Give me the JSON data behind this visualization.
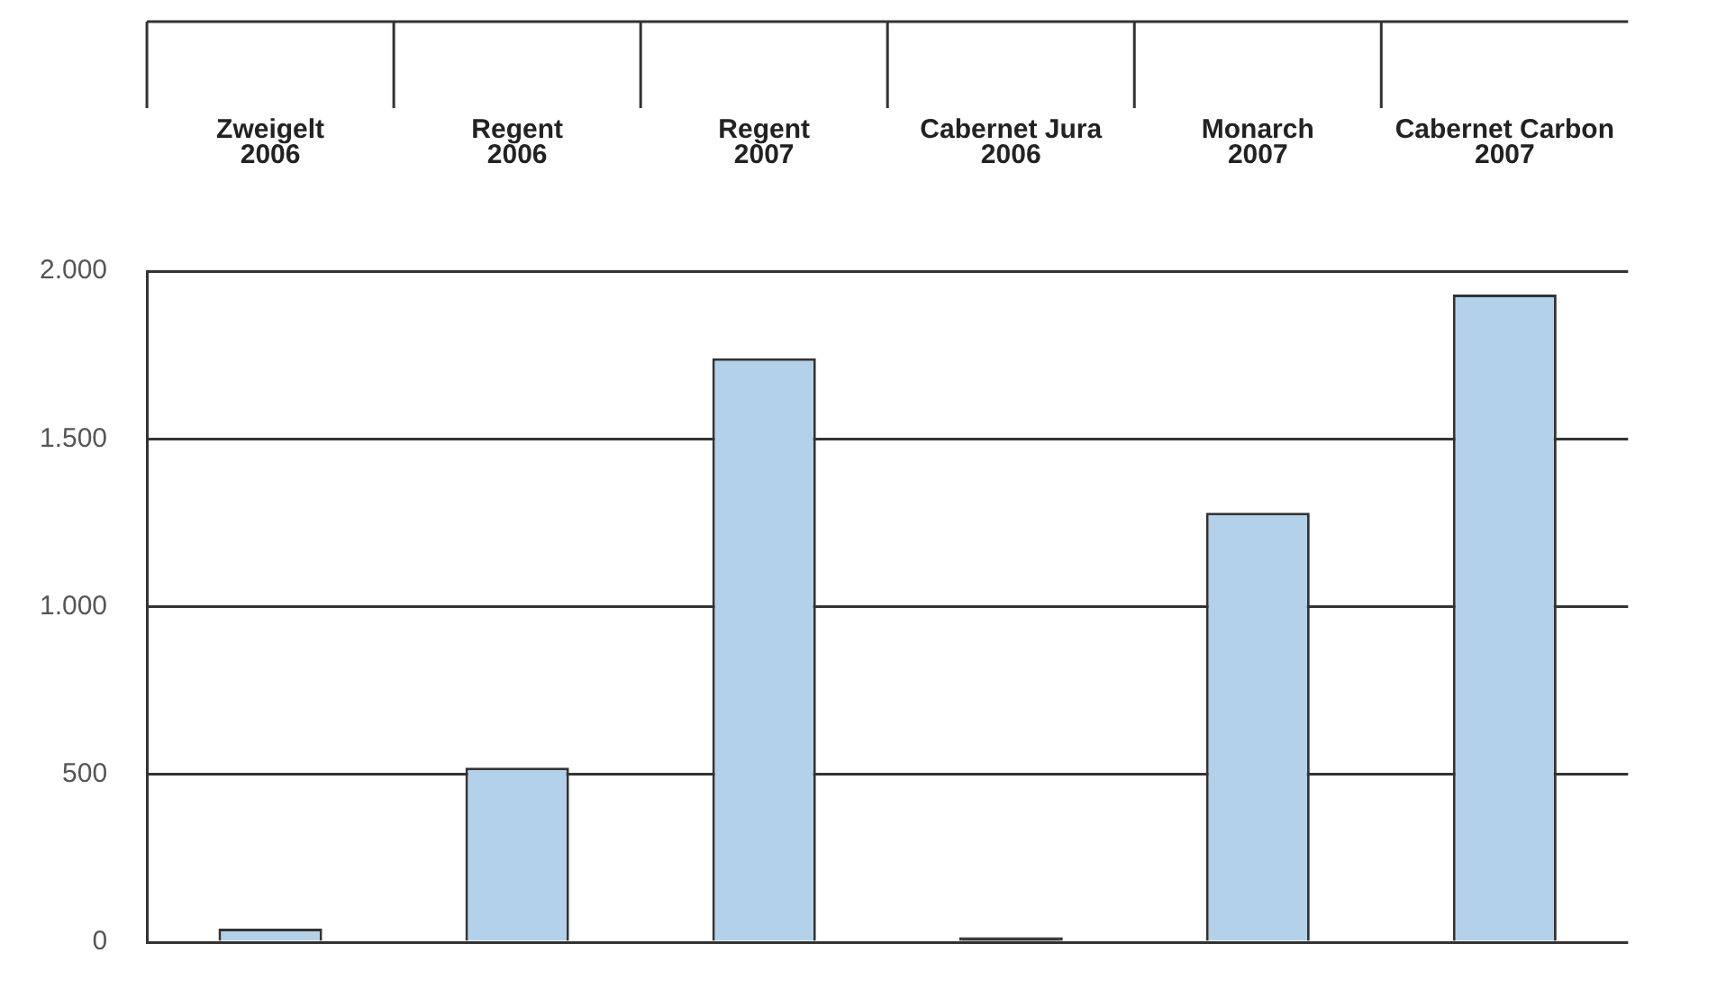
{
  "chart_data": {
    "type": "bar",
    "categories": [
      "Zweigelt\n2006",
      "Regent\n2006",
      "Regent\n2007",
      "Cabernet Jura\n2006",
      "Monarch\n2007",
      "Cabernet Carbon\n2007"
    ],
    "values": [
      40,
      520,
      1740,
      15,
      1280,
      1930
    ],
    "colors": [
      "#b3d1e8",
      "#b3d1e8",
      "#b3d1e8",
      "#1a1a1a",
      "#b3d1e8",
      "#b3d1e8"
    ],
    "ylim": [
      0,
      2000
    ],
    "yticks": [
      {
        "value": 0,
        "label": "0"
      },
      {
        "value": 500,
        "label": "500"
      },
      {
        "value": 1000,
        "label": "1.000"
      },
      {
        "value": 1500,
        "label": "1.500"
      },
      {
        "value": 2000,
        "label": "2.000"
      }
    ],
    "grid": "y",
    "legend": false
  }
}
